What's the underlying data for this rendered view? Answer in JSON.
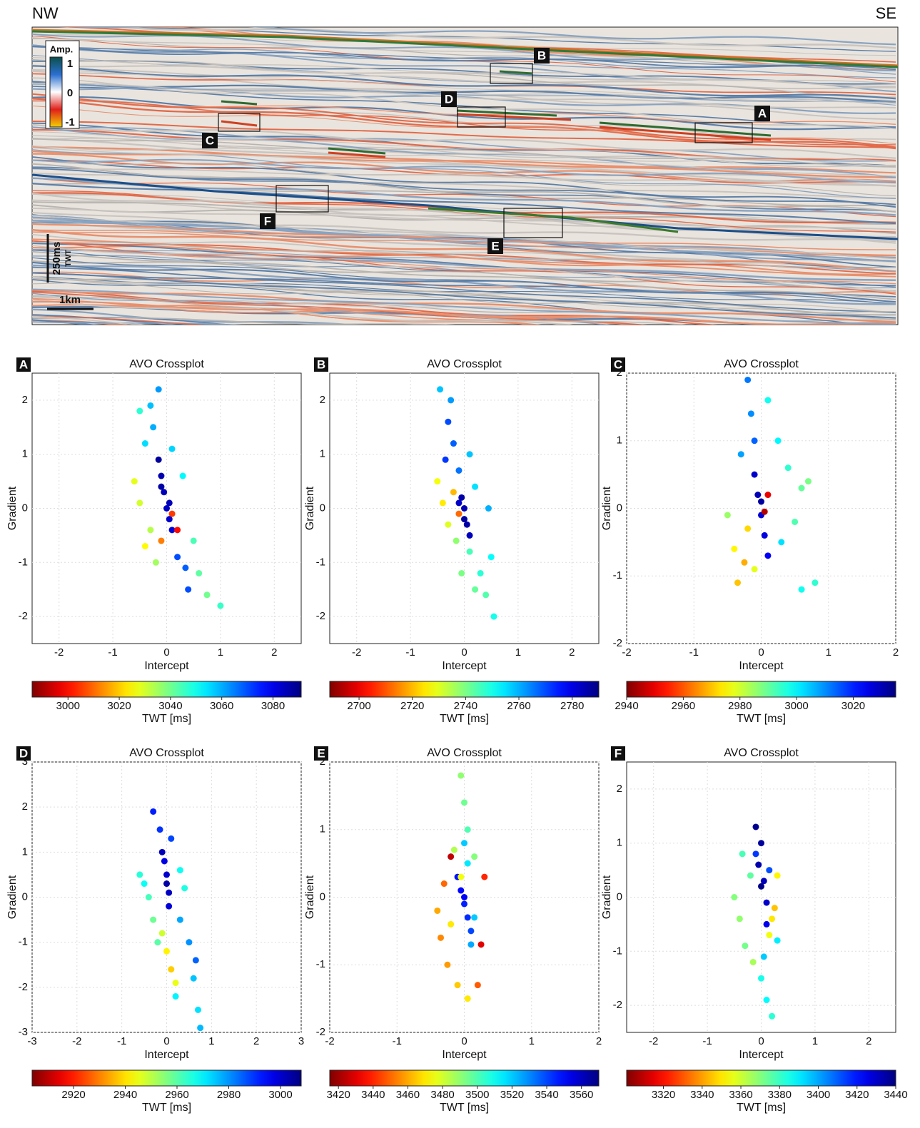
{
  "section": {
    "left_label": "NW",
    "right_label": "SE",
    "amp_legend": {
      "title": "Amp.",
      "ticks": [
        1,
        0,
        -1
      ]
    },
    "boxes": [
      "A",
      "B",
      "C",
      "D",
      "E",
      "F"
    ],
    "scale": {
      "time": "250ms",
      "time_unit": "TWT",
      "distance": "1km"
    }
  },
  "chart_data": [
    {
      "type": "scatter",
      "panel": "A",
      "title": "AVO Crossplot",
      "x_label": "Intercept",
      "y_label": "Gradient",
      "c_label": "TWT [ms]",
      "xlim": [
        -2.5,
        2.5
      ],
      "ylim": [
        -2.5,
        2.5
      ],
      "xticks": [
        -2,
        -1,
        0,
        1,
        2
      ],
      "yticks": [
        -2,
        -1,
        0,
        1,
        2
      ],
      "clim": [
        2986,
        3091
      ],
      "cticks": [
        3000,
        3020,
        3040,
        3060,
        3080
      ],
      "grid": true,
      "x": [
        -0.15,
        -0.1,
        -0.05,
        0,
        0.05,
        0.1,
        -0.1,
        0.05,
        -0.3,
        -0.25,
        -0.4,
        -0.15,
        0.1,
        0.3,
        0.35,
        0.4,
        0.2,
        0.5,
        0.6,
        0.75,
        1.0,
        -0.5,
        -0.6,
        -0.5,
        -0.3,
        -0.2,
        -0.4,
        -0.1,
        0.1,
        0.2
      ],
      "values": [
        0.9,
        0.6,
        0.3,
        0,
        -0.2,
        -0.4,
        0.4,
        0.1,
        1.9,
        1.5,
        1.2,
        2.2,
        1.1,
        0.6,
        -1.1,
        -1.5,
        -0.9,
        -0.6,
        -1.2,
        -1.6,
        -1.8,
        1.8,
        0.5,
        0.1,
        -0.4,
        -1.0,
        -0.7,
        -0.6,
        -0.1,
        -0.4
      ],
      "color_values": [
        3088,
        3086,
        3085,
        3084,
        3083,
        3082,
        3087,
        3085,
        3058,
        3060,
        3055,
        3062,
        3056,
        3052,
        3068,
        3070,
        3070,
        3044,
        3042,
        3040,
        3046,
        3047,
        3028,
        3030,
        3033,
        3035,
        3025,
        3012,
        3005,
        3000
      ]
    },
    {
      "type": "scatter",
      "panel": "B",
      "title": "AVO Crossplot",
      "x_label": "Intercept",
      "y_label": "Gradient",
      "c_label": "TWT [ms]",
      "xlim": [
        -2.5,
        2.5
      ],
      "ylim": [
        -2.5,
        2.5
      ],
      "xticks": [
        -2,
        -1,
        0,
        1,
        2
      ],
      "yticks": [
        -2,
        -1,
        0,
        1,
        2
      ],
      "clim": [
        2689,
        2790
      ],
      "cticks": [
        2700,
        2720,
        2740,
        2760,
        2780
      ],
      "grid": true,
      "x": [
        -0.05,
        0,
        0.05,
        0.1,
        -0.1,
        0,
        -0.3,
        -0.2,
        -0.35,
        -0.1,
        -0.45,
        -0.25,
        0.1,
        0.2,
        -0.5,
        -0.4,
        -0.3,
        -0.15,
        -0.2,
        -0.1,
        0.1,
        0.3,
        0.4,
        0.55,
        0.2,
        0.5,
        -0.05,
        0.45
      ],
      "values": [
        0.2,
        0,
        -0.3,
        -0.5,
        0.1,
        -0.2,
        1.6,
        1.2,
        0.9,
        0.7,
        2.2,
        2.0,
        1.0,
        0.4,
        0.5,
        0.1,
        -0.3,
        -0.6,
        0.3,
        -0.1,
        -0.8,
        -1.2,
        -1.6,
        -2.0,
        -1.5,
        -0.9,
        -1.2,
        0.0
      ],
      "color_values": [
        2786,
        2785,
        2786,
        2784,
        2783,
        2787,
        2770,
        2768,
        2772,
        2766,
        2758,
        2762,
        2758,
        2755,
        2728,
        2725,
        2730,
        2738,
        2720,
        2712,
        2745,
        2748,
        2744,
        2750,
        2742,
        2752,
        2740,
        2760
      ]
    },
    {
      "type": "scatter",
      "panel": "C",
      "title": "AVO Crossplot",
      "x_label": "Intercept",
      "y_label": "Gradient",
      "c_label": "TWT [ms]",
      "xlim": [
        -2,
        2
      ],
      "ylim": [
        -2,
        2
      ],
      "xticks": [
        -2,
        -1,
        0,
        1,
        2
      ],
      "yticks": [
        -2,
        -1,
        0,
        1,
        2
      ],
      "clim": [
        2940,
        3035
      ],
      "cticks": [
        2940,
        2960,
        2980,
        3000,
        3020
      ],
      "grid": true,
      "x": [
        -0.1,
        -0.05,
        0,
        0.05,
        0.1,
        0,
        -0.2,
        -0.15,
        -0.1,
        -0.3,
        0.1,
        0.25,
        0.4,
        0.3,
        0.6,
        0.7,
        0.5,
        0.8,
        0.6,
        -0.5,
        -0.4,
        -0.35,
        -0.25,
        -0.2,
        -0.1,
        0.1,
        0.05
      ],
      "values": [
        0.5,
        0.2,
        -0.1,
        -0.4,
        -0.7,
        0.1,
        1.9,
        1.4,
        1.0,
        0.8,
        1.6,
        1.0,
        0.6,
        -0.5,
        0.3,
        0.4,
        -0.2,
        -1.1,
        -1.2,
        -0.1,
        -0.6,
        -1.1,
        -0.8,
        -0.3,
        -0.9,
        0.2,
        -0.05
      ],
      "color_values": [
        3028,
        3030,
        3027,
        3026,
        3024,
        3032,
        3012,
        3010,
        3014,
        3008,
        2998,
        3000,
        2995,
        3002,
        2990,
        2988,
        2992,
        2995,
        2998,
        2985,
        2975,
        2970,
        2968,
        2972,
        2978,
        2950,
        2945
      ]
    },
    {
      "type": "scatter",
      "panel": "D",
      "title": "AVO Crossplot",
      "x_label": "Intercept",
      "y_label": "Gradient",
      "c_label": "TWT [ms]",
      "xlim": [
        -3,
        3
      ],
      "ylim": [
        -3,
        3
      ],
      "xticks": [
        -3,
        -2,
        -1,
        0,
        1,
        2,
        3
      ],
      "yticks": [
        -3,
        -2,
        -1,
        0,
        1,
        2,
        3
      ],
      "clim": [
        2904,
        3008
      ],
      "cticks": [
        2920,
        2940,
        2960,
        2980,
        3000
      ],
      "grid": true,
      "x": [
        -0.1,
        0,
        0.05,
        0,
        -0.05,
        0.05,
        -0.3,
        -0.15,
        0.1,
        -0.6,
        -0.4,
        -0.3,
        -0.2,
        -0.5,
        0.3,
        0.4,
        0,
        0.1,
        0.2,
        -0.1,
        0.3,
        0.5,
        0.6,
        0.7,
        0.75,
        0.2,
        0.65
      ],
      "values": [
        1.0,
        0.5,
        0.1,
        0.3,
        0.8,
        -0.2,
        1.9,
        1.5,
        1.3,
        0.5,
        0.0,
        -0.5,
        -1.0,
        0.3,
        0.6,
        0.2,
        -1.2,
        -1.6,
        -1.9,
        -0.8,
        -0.5,
        -1.0,
        -1.8,
        -2.5,
        -2.9,
        -2.2,
        -1.4
      ],
      "color_values": [
        3002,
        3000,
        3001,
        3004,
        2998,
        2999,
        2992,
        2990,
        2988,
        2965,
        2962,
        2958,
        2960,
        2968,
        2968,
        2966,
        2942,
        2938,
        2945,
        2948,
        2978,
        2980,
        2975,
        2972,
        2976,
        2970,
        2985
      ]
    },
    {
      "type": "scatter",
      "panel": "E",
      "title": "AVO Crossplot",
      "x_label": "Intercept",
      "y_label": "Gradient",
      "c_label": "TWT [ms]",
      "xlim": [
        -2,
        2
      ],
      "ylim": [
        -2,
        2
      ],
      "xticks": [
        -2,
        -1,
        0,
        1,
        2
      ],
      "yticks": [
        -2,
        -1,
        0,
        1,
        2
      ],
      "clim": [
        3415,
        3570
      ],
      "cticks": [
        3420,
        3440,
        3460,
        3480,
        3500,
        3520,
        3540,
        3560
      ],
      "grid": true,
      "x": [
        -0.1,
        -0.05,
        0,
        0.05,
        0.1,
        0,
        0,
        0.05,
        0.1,
        0.15,
        -0.05,
        0,
        0.05,
        0.15,
        -0.15,
        -0.4,
        -0.35,
        -0.25,
        -0.1,
        0.05,
        -0.3,
        0.2,
        -0.2,
        -0.2,
        0.25,
        0.3,
        -0.05
      ],
      "values": [
        0.3,
        0.1,
        -0.1,
        -0.3,
        -0.5,
        0,
        0.8,
        0.5,
        -0.7,
        -0.3,
        1.8,
        1.4,
        1.0,
        0.6,
        0.7,
        -0.2,
        -0.6,
        -1.0,
        -1.3,
        -1.5,
        0.2,
        -1.3,
        -0.4,
        0.6,
        -0.7,
        0.3,
        0.3
      ],
      "color_values": [
        3548,
        3550,
        3546,
        3544,
        3540,
        3552,
        3520,
        3515,
        3525,
        3520,
        3490,
        3495,
        3500,
        3492,
        3485,
        3460,
        3455,
        3458,
        3465,
        3470,
        3450,
        3448,
        3470,
        3425,
        3430,
        3440,
        3475
      ]
    },
    {
      "type": "scatter",
      "panel": "F",
      "title": "AVO Crossplot",
      "x_label": "Intercept",
      "y_label": "Gradient",
      "c_label": "TWT [ms]",
      "xlim": [
        -2.5,
        2.5
      ],
      "ylim": [
        -2.5,
        2.5
      ],
      "xticks": [
        -2,
        -1,
        0,
        1,
        2
      ],
      "yticks": [
        -2,
        -1,
        0,
        1,
        2
      ],
      "clim": [
        3301,
        3440
      ],
      "cticks": [
        3320,
        3340,
        3360,
        3380,
        3400,
        3420,
        3440
      ],
      "grid": true,
      "x": [
        -0.1,
        0,
        -0.05,
        0.05,
        0.1,
        0,
        0.1,
        -0.1,
        0.15,
        -0.5,
        -0.4,
        -0.3,
        -0.2,
        -0.35,
        -0.15,
        0,
        0.1,
        0.2,
        0.05,
        0.3,
        0.2,
        0.25,
        0.15,
        0.3
      ],
      "values": [
        1.3,
        1.0,
        0.6,
        0.3,
        -0.1,
        0.2,
        -0.5,
        0.8,
        0.5,
        0.0,
        -0.4,
        -0.9,
        0.4,
        0.8,
        -1.2,
        -1.5,
        -1.9,
        -2.2,
        -1.1,
        -0.8,
        -0.4,
        -0.2,
        -0.7,
        0.4
      ],
      "color_values": [
        3438,
        3436,
        3434,
        3432,
        3430,
        3439,
        3425,
        3415,
        3412,
        3370,
        3368,
        3372,
        3375,
        3378,
        3365,
        3385,
        3388,
        3382,
        3395,
        3390,
        3350,
        3345,
        3355,
        3352
      ]
    }
  ]
}
